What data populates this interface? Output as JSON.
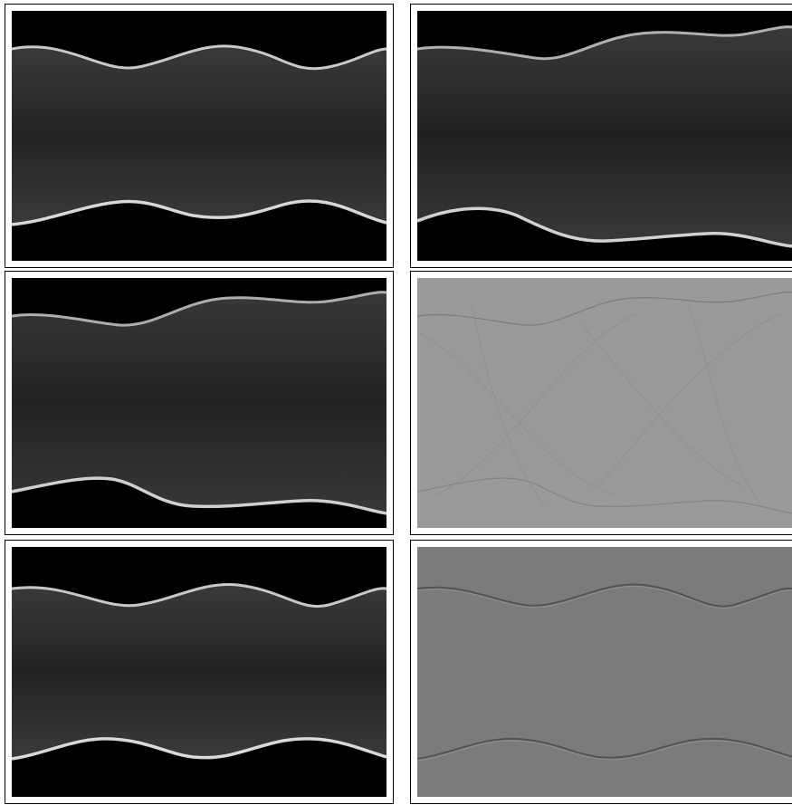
{
  "figure": {
    "panels": [
      {
        "id": "top-left",
        "kind": "sinogram",
        "background": "#000000",
        "band": "#2b2b2b",
        "edge": "#e8e8e8"
      },
      {
        "id": "top-right",
        "kind": "sinogram",
        "background": "#000000",
        "band": "#2a2a2a",
        "edge": "#e0e0e0"
      },
      {
        "id": "middle-left",
        "kind": "sinogram",
        "background": "#000000",
        "band": "#2b2b2b",
        "edge": "#dcdcdc"
      },
      {
        "id": "middle-right",
        "kind": "difference",
        "background": "#9a9a9a",
        "band": "#9a9a9a",
        "edge": "#6e6e6e"
      },
      {
        "id": "bottom-left",
        "kind": "sinogram",
        "background": "#000000",
        "band": "#2b2b2b",
        "edge": "#ececec"
      },
      {
        "id": "bottom-right",
        "kind": "difference",
        "background": "#7b7b7b",
        "band": "#7b7b7b",
        "edge": "#4a4a4a"
      }
    ]
  }
}
